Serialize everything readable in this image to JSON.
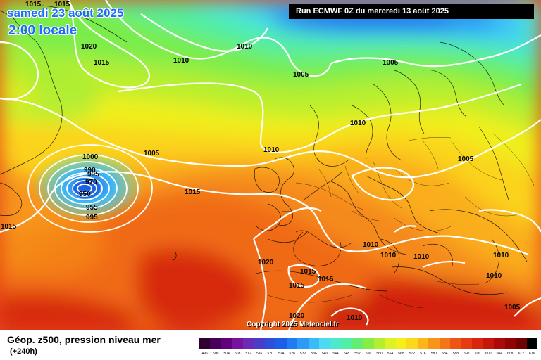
{
  "title": {
    "date": "samedi 23 août 2025",
    "time": "2:00 locale"
  },
  "run_info": "Run ECMWF 0Z du mercredi 13 août 2025",
  "copyright": "Copyright 2025 Meteociel.fr",
  "legend": {
    "title": "Géop. z500, pression niveau mer",
    "subtitle": "(+240h)",
    "scale_values": [
      "496",
      "500",
      "504",
      "508",
      "512",
      "516",
      "520",
      "524",
      "528",
      "532",
      "536",
      "540",
      "544",
      "548",
      "552",
      "556",
      "560",
      "564",
      "568",
      "572",
      "576",
      "580",
      "584",
      "588",
      "592",
      "596",
      "600",
      "604",
      "608",
      "612",
      "616"
    ],
    "scale_colors": [
      "#300030",
      "#48005a",
      "#62007e",
      "#7a12a0",
      "#6a2bb8",
      "#4a3ec8",
      "#2f4fd8",
      "#1a5fe8",
      "#1f7cf2",
      "#2b9bf7",
      "#38bbf8",
      "#4cd9f4",
      "#4de8cf",
      "#52eea5",
      "#62ee73",
      "#87ec44",
      "#b3ef2e",
      "#dcf224",
      "#f5f01c",
      "#fbd81c",
      "#fbb61a",
      "#f89419",
      "#f47418",
      "#ee5416",
      "#e63a12",
      "#d8260e",
      "#c4160a",
      "#ac0a06",
      "#900404",
      "#700202",
      "#000000"
    ]
  },
  "isobars": {
    "labels": [
      "1015",
      "1015",
      "1020",
      "1015",
      "1010",
      "1010",
      "1005",
      "1005",
      "1010",
      "1010",
      "1005",
      "1000",
      "995",
      "990",
      "970",
      "950",
      "955",
      "995",
      "1005",
      "1015",
      "1015",
      "1010",
      "1010",
      "1010",
      "1010",
      "1020",
      "1015",
      "1015",
      "1015",
      "1010",
      "1010",
      "1020",
      "1005"
    ]
  }
}
